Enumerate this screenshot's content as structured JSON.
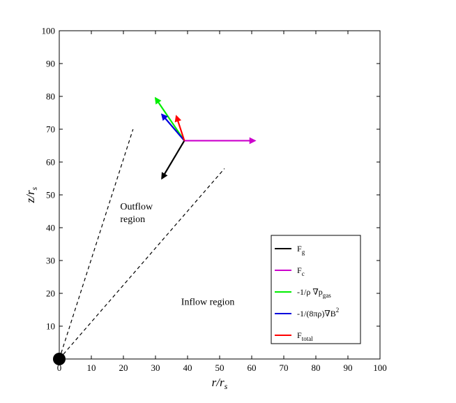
{
  "chart_data": {
    "type": "vector-field",
    "xlabel": "r/r_s",
    "ylabel": "z/r_s",
    "xlim": [
      0,
      100
    ],
    "ylim": [
      0,
      100
    ],
    "xticks": [
      "0",
      "10",
      "20",
      "30",
      "40",
      "50",
      "60",
      "70",
      "80",
      "90",
      "100"
    ],
    "yticks": [
      "10",
      "20",
      "30",
      "40",
      "50",
      "60",
      "70",
      "80",
      "90",
      "100"
    ],
    "grid": false,
    "legend_position": "bottom-right",
    "black_hole": {
      "x": 0,
      "y": 0
    },
    "dashed_lines": [
      {
        "x0": 0,
        "y0": 0,
        "x1": 23,
        "y1": 70
      },
      {
        "x0": 0,
        "y0": 0,
        "x1": 51.5,
        "y1": 58
      }
    ],
    "annotations": [
      {
        "lines": [
          "Outflow",
          "region"
        ],
        "x": 19,
        "y": 45.5
      },
      {
        "lines": [
          "Inflow region"
        ],
        "x": 38,
        "y": 16.5
      }
    ],
    "origin": {
      "x": 39,
      "y": 66.5
    },
    "vectors": [
      {
        "name": "F_g",
        "color": "#000000",
        "dx": -7,
        "dy": -11.5
      },
      {
        "name": "F_c",
        "color": "#cc00cc",
        "dx": 22,
        "dy": 0
      },
      {
        "name": "-1/ρ ∇p_gas",
        "color": "#00ee00",
        "dx": -9,
        "dy": 13
      },
      {
        "name": "-1/(8πρ)∇B^2",
        "color": "#0000dd",
        "dx": -7,
        "dy": 8
      },
      {
        "name": "F_total",
        "color": "#ff0000",
        "dx": -2.5,
        "dy": 7.5
      }
    ],
    "legend": [
      {
        "text": "F",
        "sub": "g",
        "color": "#000000"
      },
      {
        "text": "F",
        "sub": "c",
        "color": "#cc00cc"
      },
      {
        "text": "-1/ρ ∇p",
        "sub": "gas",
        "color": "#00ee00"
      },
      {
        "text": "-1/(8πρ)∇B",
        "sup": "2",
        "color": "#0000dd"
      },
      {
        "text": "F",
        "sub": "total",
        "color": "#ff0000"
      }
    ]
  }
}
